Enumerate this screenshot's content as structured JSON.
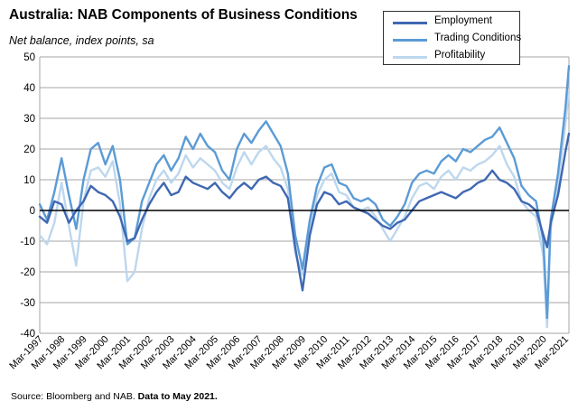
{
  "title": "Australia: NAB Components of Business Conditions",
  "subtitle": "Net balance, index points, sa",
  "source_prefix": "Source: Bloomberg and NAB. ",
  "source_bold": "Data to May 2021.",
  "chart_data": {
    "type": "line",
    "ylim": [
      -40,
      50
    ],
    "yticks": [
      -40,
      -30,
      -20,
      -10,
      0,
      10,
      20,
      30,
      40,
      50
    ],
    "grid": true,
    "legend_position": "top-right",
    "x_tick_labels": [
      "Mar-1997",
      "Mar-1998",
      "Mar-1999",
      "Mar-2000",
      "Mar-2001",
      "Mar-2002",
      "Mar-2003",
      "Mar-2004",
      "Mar-2005",
      "Mar-2006",
      "Mar-2007",
      "Mar-2008",
      "Mar-2009",
      "Mar-2010",
      "Mar-2011",
      "Mar-2012",
      "Mar-2013",
      "Mar-2014",
      "Mar-2015",
      "Mar-2016",
      "Mar-2017",
      "Mar-2018",
      "Mar-2019",
      "Mar-2020",
      "Mar-2021"
    ],
    "series": [
      {
        "name": "Employment",
        "color": "#3f68b2",
        "points": [
          [
            "1997-03",
            -2
          ],
          [
            "1997-07",
            -4
          ],
          [
            "1997-11",
            3
          ],
          [
            "1998-03",
            2
          ],
          [
            "1998-07",
            -4
          ],
          [
            "1998-11",
            0
          ],
          [
            "1999-03",
            3
          ],
          [
            "1999-07",
            8
          ],
          [
            "1999-11",
            6
          ],
          [
            "2000-03",
            5
          ],
          [
            "2000-07",
            3
          ],
          [
            "2000-11",
            -2
          ],
          [
            "2001-03",
            -10
          ],
          [
            "2001-07",
            -9
          ],
          [
            "2001-11",
            -3
          ],
          [
            "2002-03",
            2
          ],
          [
            "2002-07",
            6
          ],
          [
            "2002-11",
            9
          ],
          [
            "2003-03",
            5
          ],
          [
            "2003-07",
            6
          ],
          [
            "2003-11",
            11
          ],
          [
            "2004-03",
            9
          ],
          [
            "2004-07",
            8
          ],
          [
            "2004-11",
            7
          ],
          [
            "2005-03",
            9
          ],
          [
            "2005-07",
            6
          ],
          [
            "2005-11",
            4
          ],
          [
            "2006-03",
            7
          ],
          [
            "2006-07",
            9
          ],
          [
            "2006-11",
            7
          ],
          [
            "2007-03",
            10
          ],
          [
            "2007-07",
            11
          ],
          [
            "2007-11",
            9
          ],
          [
            "2008-03",
            8
          ],
          [
            "2008-07",
            4
          ],
          [
            "2008-11",
            -12
          ],
          [
            "2009-03",
            -26
          ],
          [
            "2009-07",
            -8
          ],
          [
            "2009-11",
            2
          ],
          [
            "2010-03",
            6
          ],
          [
            "2010-07",
            5
          ],
          [
            "2010-11",
            2
          ],
          [
            "2011-03",
            3
          ],
          [
            "2011-07",
            1
          ],
          [
            "2011-11",
            0
          ],
          [
            "2012-03",
            -1
          ],
          [
            "2012-07",
            -3
          ],
          [
            "2012-11",
            -5
          ],
          [
            "2013-03",
            -6
          ],
          [
            "2013-07",
            -4
          ],
          [
            "2013-11",
            -3
          ],
          [
            "2014-03",
            0
          ],
          [
            "2014-07",
            3
          ],
          [
            "2014-11",
            4
          ],
          [
            "2015-03",
            5
          ],
          [
            "2015-07",
            6
          ],
          [
            "2015-11",
            5
          ],
          [
            "2016-03",
            4
          ],
          [
            "2016-07",
            6
          ],
          [
            "2016-11",
            7
          ],
          [
            "2017-03",
            9
          ],
          [
            "2017-07",
            10
          ],
          [
            "2017-11",
            13
          ],
          [
            "2018-03",
            10
          ],
          [
            "2018-07",
            9
          ],
          [
            "2018-11",
            7
          ],
          [
            "2019-03",
            3
          ],
          [
            "2019-07",
            2
          ],
          [
            "2019-11",
            0
          ],
          [
            "2020-03",
            -8
          ],
          [
            "2020-05",
            -12
          ],
          [
            "2020-07",
            -4
          ],
          [
            "2020-11",
            5
          ],
          [
            "2021-03",
            19
          ],
          [
            "2021-05",
            25
          ]
        ]
      },
      {
        "name": "Trading Conditions",
        "color": "#5b9bd5",
        "points": [
          [
            "1997-03",
            2
          ],
          [
            "1997-07",
            -3
          ],
          [
            "1997-11",
            6
          ],
          [
            "1998-03",
            17
          ],
          [
            "1998-07",
            5
          ],
          [
            "1998-11",
            -6
          ],
          [
            "1999-03",
            10
          ],
          [
            "1999-07",
            20
          ],
          [
            "1999-11",
            22
          ],
          [
            "2000-03",
            15
          ],
          [
            "2000-07",
            21
          ],
          [
            "2000-11",
            10
          ],
          [
            "2001-03",
            -11
          ],
          [
            "2001-07",
            -9
          ],
          [
            "2001-11",
            3
          ],
          [
            "2002-03",
            9
          ],
          [
            "2002-07",
            15
          ],
          [
            "2002-11",
            18
          ],
          [
            "2003-03",
            13
          ],
          [
            "2003-07",
            17
          ],
          [
            "2003-11",
            24
          ],
          [
            "2004-03",
            20
          ],
          [
            "2004-07",
            25
          ],
          [
            "2004-11",
            21
          ],
          [
            "2005-03",
            19
          ],
          [
            "2005-07",
            13
          ],
          [
            "2005-11",
            10
          ],
          [
            "2006-03",
            20
          ],
          [
            "2006-07",
            25
          ],
          [
            "2006-11",
            22
          ],
          [
            "2007-03",
            26
          ],
          [
            "2007-07",
            29
          ],
          [
            "2007-11",
            25
          ],
          [
            "2008-03",
            21
          ],
          [
            "2008-07",
            12
          ],
          [
            "2008-11",
            -8
          ],
          [
            "2009-03",
            -19
          ],
          [
            "2009-07",
            -3
          ],
          [
            "2009-11",
            8
          ],
          [
            "2010-03",
            14
          ],
          [
            "2010-07",
            15
          ],
          [
            "2010-11",
            9
          ],
          [
            "2011-03",
            8
          ],
          [
            "2011-07",
            4
          ],
          [
            "2011-11",
            3
          ],
          [
            "2012-03",
            4
          ],
          [
            "2012-07",
            2
          ],
          [
            "2012-11",
            -3
          ],
          [
            "2013-03",
            -5
          ],
          [
            "2013-07",
            -2
          ],
          [
            "2013-11",
            2
          ],
          [
            "2014-03",
            9
          ],
          [
            "2014-07",
            12
          ],
          [
            "2014-11",
            13
          ],
          [
            "2015-03",
            12
          ],
          [
            "2015-07",
            16
          ],
          [
            "2015-11",
            18
          ],
          [
            "2016-03",
            16
          ],
          [
            "2016-07",
            20
          ],
          [
            "2016-11",
            19
          ],
          [
            "2017-03",
            21
          ],
          [
            "2017-07",
            23
          ],
          [
            "2017-11",
            24
          ],
          [
            "2018-03",
            27
          ],
          [
            "2018-07",
            22
          ],
          [
            "2018-11",
            17
          ],
          [
            "2019-03",
            8
          ],
          [
            "2019-07",
            5
          ],
          [
            "2019-11",
            3
          ],
          [
            "2020-03",
            -10
          ],
          [
            "2020-05",
            -35
          ],
          [
            "2020-07",
            -3
          ],
          [
            "2020-11",
            12
          ],
          [
            "2021-03",
            33
          ],
          [
            "2021-05",
            47
          ]
        ]
      },
      {
        "name": "Profitability",
        "color": "#bdd7ee",
        "points": [
          [
            "1997-03",
            -8
          ],
          [
            "1997-07",
            -11
          ],
          [
            "1997-11",
            -4
          ],
          [
            "1998-03",
            9
          ],
          [
            "1998-07",
            -5
          ],
          [
            "1998-11",
            -18
          ],
          [
            "1999-03",
            3
          ],
          [
            "1999-07",
            13
          ],
          [
            "1999-11",
            14
          ],
          [
            "2000-03",
            11
          ],
          [
            "2000-07",
            16
          ],
          [
            "2000-11",
            2
          ],
          [
            "2001-03",
            -23
          ],
          [
            "2001-07",
            -20
          ],
          [
            "2001-11",
            -6
          ],
          [
            "2002-03",
            4
          ],
          [
            "2002-07",
            10
          ],
          [
            "2002-11",
            13
          ],
          [
            "2003-03",
            9
          ],
          [
            "2003-07",
            12
          ],
          [
            "2003-11",
            18
          ],
          [
            "2004-03",
            14
          ],
          [
            "2004-07",
            17
          ],
          [
            "2004-11",
            15
          ],
          [
            "2005-03",
            13
          ],
          [
            "2005-07",
            9
          ],
          [
            "2005-11",
            7
          ],
          [
            "2006-03",
            14
          ],
          [
            "2006-07",
            19
          ],
          [
            "2006-11",
            15
          ],
          [
            "2007-03",
            19
          ],
          [
            "2007-07",
            21
          ],
          [
            "2007-11",
            17
          ],
          [
            "2008-03",
            14
          ],
          [
            "2008-07",
            7
          ],
          [
            "2008-11",
            -14
          ],
          [
            "2009-03",
            -21
          ],
          [
            "2009-07",
            -6
          ],
          [
            "2009-11",
            5
          ],
          [
            "2010-03",
            10
          ],
          [
            "2010-07",
            12
          ],
          [
            "2010-11",
            6
          ],
          [
            "2011-03",
            5
          ],
          [
            "2011-07",
            1
          ],
          [
            "2011-11",
            0
          ],
          [
            "2012-03",
            1
          ],
          [
            "2012-07",
            -2
          ],
          [
            "2012-11",
            -6
          ],
          [
            "2013-03",
            -10
          ],
          [
            "2013-07",
            -6
          ],
          [
            "2013-11",
            -2
          ],
          [
            "2014-03",
            4
          ],
          [
            "2014-07",
            8
          ],
          [
            "2014-11",
            9
          ],
          [
            "2015-03",
            7
          ],
          [
            "2015-07",
            11
          ],
          [
            "2015-11",
            13
          ],
          [
            "2016-03",
            10
          ],
          [
            "2016-07",
            14
          ],
          [
            "2016-11",
            13
          ],
          [
            "2017-03",
            15
          ],
          [
            "2017-07",
            16
          ],
          [
            "2017-11",
            18
          ],
          [
            "2018-03",
            21
          ],
          [
            "2018-07",
            15
          ],
          [
            "2018-11",
            11
          ],
          [
            "2019-03",
            3
          ],
          [
            "2019-07",
            0
          ],
          [
            "2019-11",
            -2
          ],
          [
            "2020-03",
            -15
          ],
          [
            "2020-05",
            -38
          ],
          [
            "2020-07",
            -6
          ],
          [
            "2020-11",
            8
          ],
          [
            "2021-03",
            28
          ],
          [
            "2021-05",
            39
          ]
        ]
      }
    ]
  }
}
